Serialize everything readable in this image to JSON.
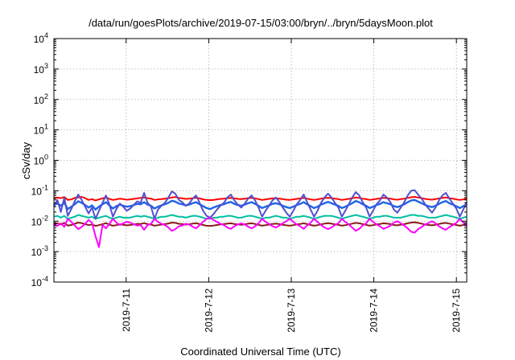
{
  "chart_data": {
    "type": "line",
    "title": "/data/run/goesPlots/archive/2019-07-15/03:00/bryn/../bryn/5daysMoon.plot",
    "xlabel": "Coordinated Universal Time (UTC)",
    "ylabel": "cSv/day",
    "yscale": "log",
    "ylim": [
      0.0001,
      10000
    ],
    "xlim": [
      "2019-07-10 03:00",
      "2019-07-15 03:00"
    ],
    "grid": true,
    "legend": "none",
    "y_ticks": [
      {
        "value": 0.0001,
        "base": "10",
        "exp": "-4"
      },
      {
        "value": 0.001,
        "base": "10",
        "exp": "-3"
      },
      {
        "value": 0.01,
        "base": "10",
        "exp": "-2"
      },
      {
        "value": 0.1,
        "base": "10",
        "exp": "-1"
      },
      {
        "value": 1,
        "base": "10",
        "exp": "0"
      },
      {
        "value": 10,
        "base": "10",
        "exp": "1"
      },
      {
        "value": 100,
        "base": "10",
        "exp": "2"
      },
      {
        "value": 1000,
        "base": "10",
        "exp": "3"
      },
      {
        "value": 10000,
        "base": "10",
        "exp": "4"
      }
    ],
    "x_ticks": [
      {
        "date": "2019-07-11 00:00",
        "label": "2019-7-11"
      },
      {
        "date": "2019-07-12 00:00",
        "label": "2019-7-12"
      },
      {
        "date": "2019-07-13 00:00",
        "label": "2019-7-13"
      },
      {
        "date": "2019-07-14 00:00",
        "label": "2019-7-14"
      },
      {
        "date": "2019-07-15 00:00",
        "label": "2019-7-15"
      }
    ],
    "series": [
      {
        "color": "#ff0000",
        "values": [
          0.055,
          0.06,
          0.057,
          0.062,
          0.05,
          0.052,
          0.058,
          0.06,
          0.063,
          0.057,
          0.05,
          0.053,
          0.048,
          0.052,
          0.056,
          0.06,
          0.054,
          0.05,
          0.052,
          0.055,
          0.053,
          0.051,
          0.052,
          0.054,
          0.056,
          0.058,
          0.06,
          0.057,
          0.055,
          0.05,
          0.052,
          0.053,
          0.055,
          0.057,
          0.06,
          0.062,
          0.058,
          0.056,
          0.054,
          0.055,
          0.057,
          0.059,
          0.056,
          0.052,
          0.05,
          0.049,
          0.05,
          0.052,
          0.054,
          0.055,
          0.057,
          0.058,
          0.056,
          0.054,
          0.053,
          0.055,
          0.057,
          0.058,
          0.056,
          0.053,
          0.05,
          0.052,
          0.054,
          0.056,
          0.057,
          0.055,
          0.053,
          0.051,
          0.05,
          0.052,
          0.054,
          0.056,
          0.058,
          0.055,
          0.052,
          0.05,
          0.052,
          0.055,
          0.057,
          0.059,
          0.057,
          0.055,
          0.053,
          0.05,
          0.052,
          0.054,
          0.057,
          0.06,
          0.058,
          0.055,
          0.053,
          0.05,
          0.052,
          0.054,
          0.056,
          0.058,
          0.057,
          0.055,
          0.052,
          0.051,
          0.053,
          0.055,
          0.058,
          0.061,
          0.063,
          0.06,
          0.057,
          0.054,
          0.052,
          0.051,
          0.053,
          0.056,
          0.058,
          0.06,
          0.057,
          0.055,
          0.052,
          0.05,
          0.052,
          0.055
        ]
      },
      {
        "color": "#00bfa0",
        "values": [
          0.014,
          0.015,
          0.013,
          0.015,
          0.012,
          0.013,
          0.014,
          0.016,
          0.015,
          0.014,
          0.013,
          0.014,
          0.012,
          0.013,
          0.014,
          0.015,
          0.013,
          0.012,
          0.013,
          0.014,
          0.013,
          0.013,
          0.013,
          0.014,
          0.015,
          0.014,
          0.015,
          0.014,
          0.013,
          0.012,
          0.013,
          0.014,
          0.014,
          0.015,
          0.016,
          0.015,
          0.014,
          0.014,
          0.013,
          0.014,
          0.015,
          0.015,
          0.014,
          0.013,
          0.012,
          0.012,
          0.013,
          0.013,
          0.014,
          0.014,
          0.015,
          0.015,
          0.014,
          0.013,
          0.013,
          0.014,
          0.015,
          0.015,
          0.014,
          0.013,
          0.012,
          0.013,
          0.013,
          0.014,
          0.015,
          0.014,
          0.013,
          0.013,
          0.012,
          0.013,
          0.014,
          0.014,
          0.015,
          0.014,
          0.013,
          0.012,
          0.013,
          0.014,
          0.015,
          0.015,
          0.015,
          0.014,
          0.013,
          0.012,
          0.013,
          0.014,
          0.015,
          0.016,
          0.015,
          0.014,
          0.013,
          0.012,
          0.013,
          0.014,
          0.014,
          0.015,
          0.015,
          0.014,
          0.013,
          0.013,
          0.013,
          0.014,
          0.015,
          0.016,
          0.016,
          0.015,
          0.015,
          0.014,
          0.013,
          0.013,
          0.013,
          0.014,
          0.015,
          0.016,
          0.015,
          0.014,
          0.013,
          0.012,
          0.013,
          0.014
        ]
      },
      {
        "color": "#8b1a1a",
        "values": [
          0.008,
          0.0085,
          0.0078,
          0.0088,
          0.0072,
          0.0075,
          0.0082,
          0.009,
          0.0086,
          0.008,
          0.0074,
          0.0078,
          0.007,
          0.0074,
          0.008,
          0.0086,
          0.0077,
          0.0071,
          0.0074,
          0.0079,
          0.0076,
          0.0073,
          0.0075,
          0.0078,
          0.0082,
          0.0081,
          0.0086,
          0.008,
          0.0077,
          0.0071,
          0.0074,
          0.0077,
          0.008,
          0.0084,
          0.009,
          0.0088,
          0.0082,
          0.008,
          0.0077,
          0.0079,
          0.0083,
          0.0086,
          0.008,
          0.0075,
          0.0071,
          0.007,
          0.0072,
          0.0075,
          0.0078,
          0.008,
          0.0083,
          0.0085,
          0.0081,
          0.0078,
          0.0076,
          0.0079,
          0.0083,
          0.0085,
          0.0081,
          0.0076,
          0.0071,
          0.0074,
          0.0077,
          0.0081,
          0.0083,
          0.008,
          0.0076,
          0.0073,
          0.0071,
          0.0074,
          0.0078,
          0.0081,
          0.0085,
          0.008,
          0.0075,
          0.0071,
          0.0074,
          0.0079,
          0.0083,
          0.0086,
          0.0083,
          0.0079,
          0.0076,
          0.0071,
          0.0074,
          0.0078,
          0.0083,
          0.0088,
          0.0085,
          0.008,
          0.0076,
          0.0071,
          0.0074,
          0.0078,
          0.0081,
          0.0085,
          0.0083,
          0.008,
          0.0075,
          0.0073,
          0.0076,
          0.008,
          0.0085,
          0.009,
          0.0092,
          0.0088,
          0.0083,
          0.0078,
          0.0075,
          0.0073,
          0.0076,
          0.0081,
          0.0085,
          0.0088,
          0.0083,
          0.0079,
          0.0075,
          0.0071,
          0.0075,
          0.008
        ]
      },
      {
        "color": "#1e64e6",
        "values": [
          0.035,
          0.038,
          0.032,
          0.04,
          0.025,
          0.03,
          0.036,
          0.045,
          0.04,
          0.034,
          0.028,
          0.033,
          0.024,
          0.03,
          0.036,
          0.042,
          0.033,
          0.026,
          0.031,
          0.035,
          0.032,
          0.03,
          0.031,
          0.034,
          0.037,
          0.036,
          0.042,
          0.035,
          0.032,
          0.026,
          0.03,
          0.033,
          0.036,
          0.04,
          0.047,
          0.044,
          0.038,
          0.036,
          0.033,
          0.035,
          0.039,
          0.042,
          0.036,
          0.031,
          0.027,
          0.025,
          0.028,
          0.031,
          0.034,
          0.036,
          0.04,
          0.043,
          0.037,
          0.034,
          0.032,
          0.035,
          0.039,
          0.042,
          0.037,
          0.032,
          0.027,
          0.03,
          0.033,
          0.037,
          0.039,
          0.036,
          0.032,
          0.029,
          0.027,
          0.03,
          0.034,
          0.037,
          0.042,
          0.036,
          0.031,
          0.027,
          0.03,
          0.035,
          0.039,
          0.043,
          0.039,
          0.035,
          0.032,
          0.027,
          0.03,
          0.034,
          0.039,
          0.046,
          0.042,
          0.036,
          0.032,
          0.027,
          0.03,
          0.034,
          0.037,
          0.042,
          0.039,
          0.036,
          0.031,
          0.029,
          0.032,
          0.036,
          0.042,
          0.048,
          0.05,
          0.044,
          0.039,
          0.034,
          0.031,
          0.029,
          0.032,
          0.037,
          0.042,
          0.046,
          0.039,
          0.035,
          0.031,
          0.027,
          0.031,
          0.036
        ]
      },
      {
        "color": "#5050d0",
        "values": [
          0.03,
          0.05,
          0.02,
          0.06,
          0.015,
          0.025,
          0.045,
          0.075,
          0.05,
          0.03,
          0.018,
          0.028,
          0.012,
          0.022,
          0.04,
          0.07,
          0.035,
          0.014,
          0.025,
          0.038,
          0.03,
          0.022,
          0.026,
          0.034,
          0.045,
          0.04,
          0.085,
          0.04,
          0.03,
          0.012,
          0.024,
          0.032,
          0.04,
          0.06,
          0.095,
          0.08,
          0.05,
          0.042,
          0.032,
          0.038,
          0.055,
          0.07,
          0.04,
          0.022,
          0.015,
          0.013,
          0.017,
          0.024,
          0.032,
          0.04,
          0.06,
          0.075,
          0.048,
          0.035,
          0.028,
          0.038,
          0.055,
          0.07,
          0.048,
          0.028,
          0.014,
          0.022,
          0.032,
          0.048,
          0.06,
          0.042,
          0.028,
          0.019,
          0.014,
          0.022,
          0.036,
          0.05,
          0.075,
          0.042,
          0.024,
          0.014,
          0.022,
          0.04,
          0.06,
          0.08,
          0.06,
          0.04,
          0.028,
          0.014,
          0.022,
          0.036,
          0.06,
          0.09,
          0.07,
          0.042,
          0.028,
          0.014,
          0.022,
          0.036,
          0.048,
          0.075,
          0.06,
          0.042,
          0.024,
          0.019,
          0.028,
          0.042,
          0.07,
          0.1,
          0.105,
          0.075,
          0.055,
          0.036,
          0.026,
          0.019,
          0.028,
          0.048,
          0.07,
          0.085,
          0.055,
          0.038,
          0.026,
          0.014,
          0.024,
          0.042
        ]
      },
      {
        "color": "#ff00ff",
        "values": [
          0.0075,
          0.007,
          0.0085,
          0.0065,
          0.012,
          0.0095,
          0.0072,
          0.0055,
          0.0065,
          0.0082,
          0.011,
          0.0088,
          0.0032,
          0.0014,
          0.0075,
          0.0058,
          0.0082,
          0.012,
          0.009,
          0.0075,
          0.0085,
          0.0095,
          0.009,
          0.008,
          0.0072,
          0.0075,
          0.0052,
          0.0075,
          0.0082,
          0.012,
          0.0095,
          0.0082,
          0.0075,
          0.0062,
          0.0048,
          0.0055,
          0.0068,
          0.0072,
          0.0082,
          0.0078,
          0.0066,
          0.0058,
          0.0075,
          0.0095,
          0.012,
          0.013,
          0.011,
          0.0095,
          0.0082,
          0.0075,
          0.0062,
          0.0056,
          0.0068,
          0.0078,
          0.0085,
          0.0078,
          0.0066,
          0.0058,
          0.0068,
          0.0085,
          0.012,
          0.0095,
          0.0082,
          0.0068,
          0.0062,
          0.0072,
          0.0085,
          0.01,
          0.012,
          0.0095,
          0.0078,
          0.0068,
          0.0056,
          0.0072,
          0.009,
          0.012,
          0.0095,
          0.0075,
          0.0062,
          0.0055,
          0.0062,
          0.0075,
          0.0085,
          0.012,
          0.0095,
          0.0078,
          0.0062,
          0.0048,
          0.0056,
          0.0072,
          0.0085,
          0.012,
          0.0095,
          0.0078,
          0.0068,
          0.0056,
          0.0062,
          0.0072,
          0.009,
          0.01,
          0.0085,
          0.0072,
          0.0058,
          0.0045,
          0.0042,
          0.0055,
          0.0064,
          0.0078,
          0.0088,
          0.01,
          0.0085,
          0.0068,
          0.0058,
          0.0052,
          0.0064,
          0.0075,
          0.0088,
          0.012,
          0.009,
          0.0072
        ]
      }
    ]
  }
}
